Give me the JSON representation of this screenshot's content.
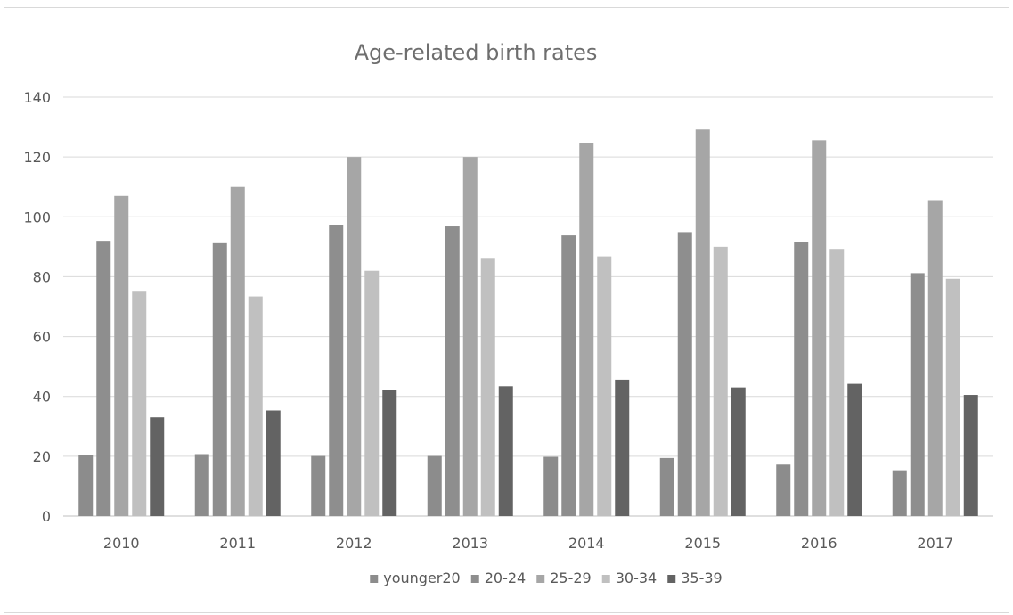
{
  "chart_data": {
    "type": "bar",
    "title": "Age-related birth rates",
    "xlabel": "",
    "ylabel": "",
    "categories": [
      "2010",
      "2011",
      "2012",
      "2013",
      "2014",
      "2015",
      "2016",
      "2017"
    ],
    "ylim": [
      0,
      140
    ],
    "yticks": [
      0,
      20,
      40,
      60,
      80,
      100,
      120,
      140
    ],
    "grid": true,
    "legend_position": "bottom",
    "series": [
      {
        "name": "younger20",
        "color": "#8c8c8c",
        "values": [
          20.5,
          20.7,
          20.1,
          20.1,
          19.8,
          19.4,
          17.2,
          15.3
        ]
      },
      {
        "name": "20-24",
        "color": "#8e8e8e",
        "values": [
          92,
          91.2,
          97.4,
          96.8,
          93.8,
          94.9,
          91.5,
          81.2
        ]
      },
      {
        "name": "25-29",
        "color": "#a6a6a6",
        "values": [
          107,
          110,
          120,
          120,
          124.8,
          129.2,
          125.6,
          105.6
        ]
      },
      {
        "name": "30-34",
        "color": "#c0c0c0",
        "values": [
          75,
          73.4,
          82,
          86,
          86.8,
          90,
          89.3,
          79.3
        ]
      },
      {
        "name": "35-39",
        "color": "#636363",
        "values": [
          33,
          35.3,
          42,
          43.4,
          45.6,
          43,
          44.2,
          40.5
        ]
      }
    ]
  }
}
